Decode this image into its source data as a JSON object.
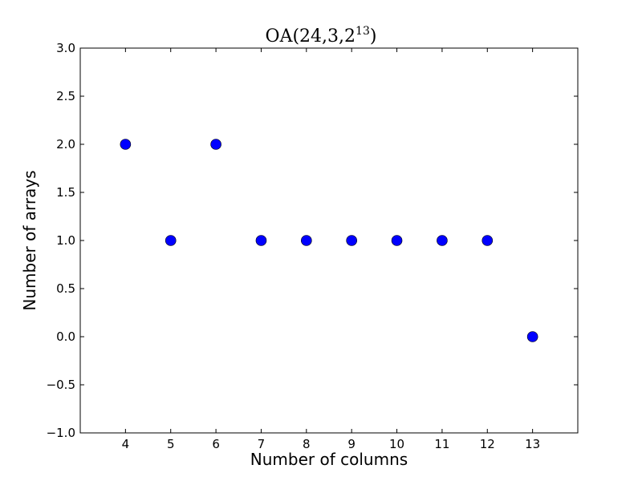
{
  "chart_data": {
    "type": "scatter",
    "title_main": "OA(24,3,2",
    "title_sup": "13",
    "title_close": ")",
    "xlabel": "Number of columns",
    "ylabel": "Number of arrays",
    "xlim": [
      3,
      14
    ],
    "ylim": [
      -1.0,
      3.0
    ],
    "xticks": [
      4,
      5,
      6,
      7,
      8,
      9,
      10,
      11,
      12,
      13
    ],
    "yticks": [
      -1.0,
      -0.5,
      0.0,
      0.5,
      1.0,
      1.5,
      2.0,
      2.5,
      3.0
    ],
    "ytick_labels": [
      "−1.0",
      "−0.5",
      "0.0",
      "0.5",
      "1.0",
      "1.5",
      "2.0",
      "2.5",
      "3.0"
    ],
    "grid": false,
    "marker_color": "#0000ff",
    "series": [
      {
        "x": [
          4,
          5,
          6,
          7,
          8,
          9,
          10,
          11,
          12,
          13
        ],
        "y": [
          2,
          1,
          2,
          1,
          1,
          1,
          1,
          1,
          1,
          0
        ]
      }
    ]
  }
}
